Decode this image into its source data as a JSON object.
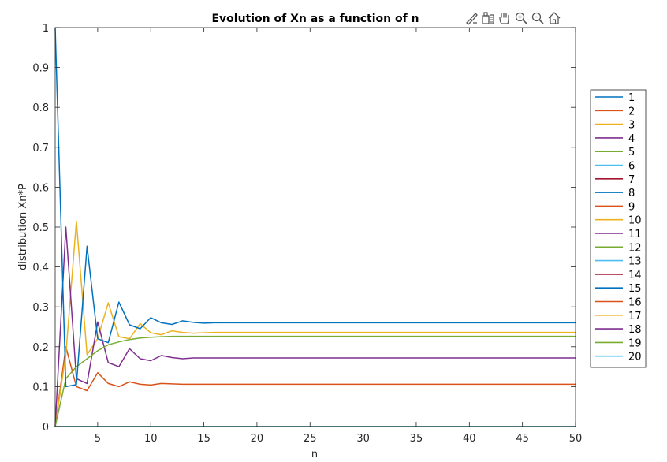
{
  "toolbar": {
    "icons": [
      "brush-icon",
      "insert-legend-icon",
      "hand-pan-icon",
      "zoom-in-icon",
      "zoom-out-icon",
      "home-icon"
    ]
  },
  "chart_data": {
    "type": "line",
    "title": "Evolution of Xn as a function of n",
    "xlabel": "n",
    "ylabel": "distribution Xn*P",
    "xlim": [
      1,
      50
    ],
    "ylim": [
      0,
      1
    ],
    "xticks": [
      5,
      10,
      15,
      20,
      25,
      30,
      35,
      40,
      45,
      50
    ],
    "yticks": [
      0,
      0.1,
      0.2,
      0.3,
      0.4,
      0.5,
      0.6,
      0.7,
      0.8,
      0.9,
      1
    ],
    "grid": false,
    "legend": "outside-right",
    "colors": [
      "#0072BD",
      "#D95319",
      "#EDB120",
      "#7E2F8E",
      "#77AC30",
      "#4DBEEE",
      "#A2142F"
    ],
    "series": [
      {
        "name": "1",
        "color": "#0072BD",
        "x": [
          1,
          2,
          3,
          4,
          5,
          6,
          7,
          8,
          9,
          10,
          11,
          12,
          13,
          14,
          15,
          16,
          17,
          18,
          19,
          20,
          50
        ],
        "y": [
          0,
          0,
          0,
          0,
          0,
          0,
          0,
          0,
          0,
          0,
          0,
          0,
          0,
          0,
          0,
          0,
          0,
          0,
          0,
          0,
          0
        ]
      },
      {
        "name": "2",
        "color": "#D95319",
        "x": [
          1,
          2,
          3,
          4,
          5,
          6,
          7,
          8,
          9,
          10,
          11,
          12,
          13,
          14,
          15,
          16,
          17,
          18,
          19,
          20,
          50
        ],
        "y": [
          0,
          0.2,
          0.1,
          0.09,
          0.135,
          0.108,
          0.1,
          0.112,
          0.106,
          0.104,
          0.108,
          0.107,
          0.106,
          0.106,
          0.106,
          0.106,
          0.106,
          0.106,
          0.106,
          0.106,
          0.106
        ]
      },
      {
        "name": "3",
        "color": "#EDB120",
        "x": [
          1,
          2,
          3,
          4,
          5,
          6,
          7,
          8,
          9,
          10,
          11,
          12,
          13,
          14,
          15,
          16,
          17,
          18,
          19,
          20,
          50
        ],
        "y": [
          0,
          0.18,
          0.515,
          0.18,
          0.22,
          0.31,
          0.225,
          0.22,
          0.258,
          0.235,
          0.23,
          0.24,
          0.236,
          0.234,
          0.235,
          0.236,
          0.236,
          0.236,
          0.236,
          0.236,
          0.236
        ]
      },
      {
        "name": "4",
        "color": "#7E2F8E",
        "x": [
          1,
          2,
          3,
          4,
          5,
          6,
          7,
          8,
          9,
          10,
          11,
          12,
          13,
          14,
          15,
          16,
          17,
          18,
          19,
          20,
          50
        ],
        "y": [
          0,
          0.5,
          0.12,
          0.108,
          0.262,
          0.16,
          0.15,
          0.195,
          0.17,
          0.165,
          0.178,
          0.173,
          0.17,
          0.172,
          0.172,
          0.172,
          0.172,
          0.172,
          0.172,
          0.172,
          0.172
        ]
      },
      {
        "name": "5",
        "color": "#77AC30",
        "x": [
          1,
          2,
          3,
          4,
          5,
          6,
          7,
          8,
          9,
          10,
          11,
          12,
          13,
          14,
          15,
          16,
          17,
          18,
          19,
          20,
          50
        ],
        "y": [
          0,
          0.12,
          0.15,
          0.17,
          0.19,
          0.205,
          0.212,
          0.218,
          0.222,
          0.224,
          0.225,
          0.226,
          0.226,
          0.226,
          0.226,
          0.226,
          0.226,
          0.226,
          0.226,
          0.226,
          0.226
        ]
      },
      {
        "name": "6",
        "color": "#4DBEEE",
        "x": [
          1,
          50
        ],
        "y": [
          0,
          0
        ]
      },
      {
        "name": "7",
        "color": "#A2142F",
        "x": [
          1,
          50
        ],
        "y": [
          0,
          0
        ]
      },
      {
        "name": "8",
        "color": "#0072BD",
        "x": [
          1,
          2,
          3,
          4,
          5,
          6,
          7,
          8,
          9,
          10,
          11,
          12,
          13,
          14,
          15,
          16,
          17,
          18,
          19,
          20,
          50
        ],
        "y": [
          1,
          0.1,
          0.105,
          0.452,
          0.22,
          0.21,
          0.312,
          0.255,
          0.245,
          0.273,
          0.26,
          0.256,
          0.265,
          0.261,
          0.259,
          0.26,
          0.26,
          0.26,
          0.26,
          0.26,
          0.26
        ]
      },
      {
        "name": "9",
        "color": "#D95319",
        "x": [
          1,
          50
        ],
        "y": [
          0,
          0
        ]
      },
      {
        "name": "10",
        "color": "#EDB120",
        "x": [
          1,
          50
        ],
        "y": [
          0,
          0
        ]
      },
      {
        "name": "11",
        "color": "#7E2F8E",
        "x": [
          1,
          50
        ],
        "y": [
          0,
          0
        ]
      },
      {
        "name": "12",
        "color": "#77AC30",
        "x": [
          1,
          50
        ],
        "y": [
          0,
          0
        ]
      },
      {
        "name": "13",
        "color": "#4DBEEE",
        "x": [
          1,
          50
        ],
        "y": [
          0,
          0
        ]
      },
      {
        "name": "14",
        "color": "#A2142F",
        "x": [
          1,
          50
        ],
        "y": [
          0,
          0
        ]
      },
      {
        "name": "15",
        "color": "#0072BD",
        "x": [
          1,
          50
        ],
        "y": [
          0,
          0
        ]
      },
      {
        "name": "16",
        "color": "#D95319",
        "x": [
          1,
          50
        ],
        "y": [
          0,
          0
        ]
      },
      {
        "name": "17",
        "color": "#EDB120",
        "x": [
          1,
          50
        ],
        "y": [
          0,
          0
        ]
      },
      {
        "name": "18",
        "color": "#7E2F8E",
        "x": [
          1,
          50
        ],
        "y": [
          0,
          0
        ]
      },
      {
        "name": "19",
        "color": "#77AC30",
        "x": [
          1,
          50
        ],
        "y": [
          0,
          0
        ]
      },
      {
        "name": "20",
        "color": "#4DBEEE",
        "x": [
          1,
          50
        ],
        "y": [
          0,
          0
        ]
      }
    ]
  }
}
